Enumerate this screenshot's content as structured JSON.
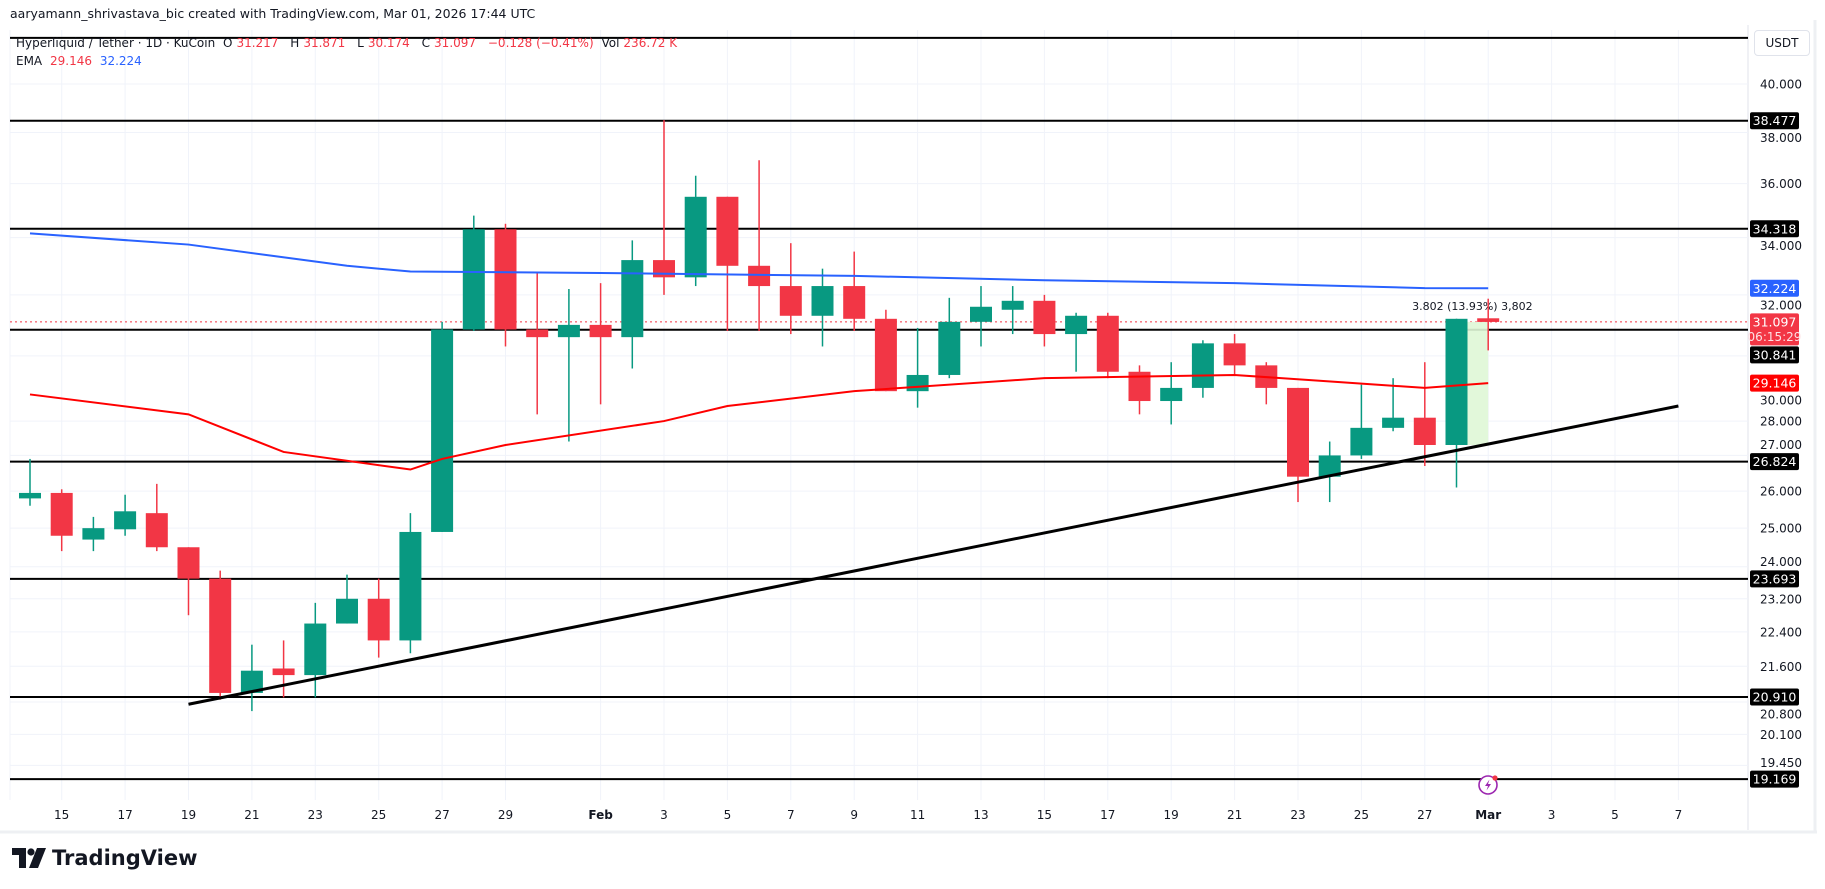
{
  "credit": "aaryamann_shrivastava_bic created with TradingView.com, Mar 01, 2026 17:44 UTC",
  "legend": {
    "symbol": "Hyperliquid / Tether · 1D · KuCoin",
    "o_label": "O",
    "o": "31.217",
    "h_label": "H",
    "h": "31.871",
    "l_label": "L",
    "l": "30.174",
    "c_label": "C",
    "c": "31.097",
    "change": "−0.128 (−0.41%)",
    "vol_label": "Vol",
    "vol": "236.72 K",
    "ema_label": "EMA",
    "ema_fast": "29.146",
    "ema_slow": "32.224"
  },
  "currency_button": "USDT",
  "brand": "TradingView",
  "colors": {
    "up": "#089981",
    "down": "#f23645",
    "ema_fast": "#ff0000",
    "ema_slow": "#2962ff",
    "levels": "#000000",
    "measure_fill": "#dff7d6",
    "alert_icon": "#9c27b0"
  },
  "chart_data": {
    "type": "candlestick",
    "y_scale": "log",
    "ylim": [
      19.0,
      42.5
    ],
    "grid": true,
    "candles": [
      {
        "date": "2026-01-14",
        "o": 25.8,
        "h": 26.9,
        "l": 25.6,
        "c": 25.95
      },
      {
        "date": "2026-01-15",
        "o": 25.95,
        "h": 26.05,
        "l": 24.4,
        "c": 24.8
      },
      {
        "date": "2026-01-16",
        "o": 24.7,
        "h": 25.3,
        "l": 24.4,
        "c": 25.0
      },
      {
        "date": "2026-01-17",
        "o": 24.97,
        "h": 25.9,
        "l": 24.8,
        "c": 25.45
      },
      {
        "date": "2026-01-18",
        "o": 25.4,
        "h": 26.2,
        "l": 24.4,
        "c": 24.5
      },
      {
        "date": "2026-01-19",
        "o": 24.5,
        "h": 24.5,
        "l": 22.8,
        "c": 23.7
      },
      {
        "date": "2026-01-20",
        "o": 23.7,
        "h": 23.9,
        "l": 20.85,
        "c": 21.0
      },
      {
        "date": "2026-01-21",
        "o": 21.0,
        "h": 22.1,
        "l": 20.6,
        "c": 21.5
      },
      {
        "date": "2026-01-22",
        "o": 21.55,
        "h": 22.2,
        "l": 20.9,
        "c": 21.4
      },
      {
        "date": "2026-01-23",
        "o": 21.4,
        "h": 23.1,
        "l": 20.9,
        "c": 22.6
      },
      {
        "date": "2026-01-24",
        "o": 22.6,
        "h": 23.8,
        "l": 22.6,
        "c": 23.2
      },
      {
        "date": "2026-01-25",
        "o": 23.2,
        "h": 23.7,
        "l": 21.8,
        "c": 22.2
      },
      {
        "date": "2026-01-26",
        "o": 22.2,
        "h": 25.4,
        "l": 21.9,
        "c": 24.9
      },
      {
        "date": "2026-01-27",
        "o": 24.9,
        "h": 31.1,
        "l": 24.9,
        "c": 30.85
      },
      {
        "date": "2026-01-28",
        "o": 30.85,
        "h": 34.8,
        "l": 30.8,
        "c": 34.3
      },
      {
        "date": "2026-01-29",
        "o": 34.3,
        "h": 34.5,
        "l": 30.3,
        "c": 30.85
      },
      {
        "date": "2026-01-30",
        "o": 30.85,
        "h": 32.8,
        "l": 28.2,
        "c": 30.6
      },
      {
        "date": "2026-01-31",
        "o": 30.6,
        "h": 32.2,
        "l": 27.4,
        "c": 31.0
      },
      {
        "date": "2026-02-01",
        "o": 31.0,
        "h": 32.4,
        "l": 28.5,
        "c": 30.6
      },
      {
        "date": "2026-02-02",
        "o": 30.6,
        "h": 33.9,
        "l": 29.6,
        "c": 33.2
      },
      {
        "date": "2026-02-03",
        "o": 33.2,
        "h": 38.5,
        "l": 32.0,
        "c": 32.6
      },
      {
        "date": "2026-02-04",
        "o": 32.6,
        "h": 36.3,
        "l": 32.3,
        "c": 35.5
      },
      {
        "date": "2026-02-05",
        "o": 35.5,
        "h": 35.5,
        "l": 30.8,
        "c": 33.0
      },
      {
        "date": "2026-02-06",
        "o": 33.0,
        "h": 36.9,
        "l": 30.8,
        "c": 32.3
      },
      {
        "date": "2026-02-07",
        "o": 32.3,
        "h": 33.8,
        "l": 30.7,
        "c": 31.3
      },
      {
        "date": "2026-02-08",
        "o": 31.3,
        "h": 32.9,
        "l": 30.3,
        "c": 32.3
      },
      {
        "date": "2026-02-09",
        "o": 32.3,
        "h": 33.5,
        "l": 30.8,
        "c": 31.2
      },
      {
        "date": "2026-02-10",
        "o": 31.2,
        "h": 31.5,
        "l": 28.9,
        "c": 28.9
      },
      {
        "date": "2026-02-11",
        "o": 28.9,
        "h": 30.9,
        "l": 28.4,
        "c": 29.4
      },
      {
        "date": "2026-02-12",
        "o": 29.4,
        "h": 31.9,
        "l": 29.3,
        "c": 31.1
      },
      {
        "date": "2026-02-13",
        "o": 31.1,
        "h": 32.3,
        "l": 30.3,
        "c": 31.6
      },
      {
        "date": "2026-02-14",
        "o": 31.5,
        "h": 32.3,
        "l": 30.7,
        "c": 31.8
      },
      {
        "date": "2026-02-15",
        "o": 31.8,
        "h": 32.0,
        "l": 30.3,
        "c": 30.7
      },
      {
        "date": "2026-02-16",
        "o": 30.7,
        "h": 31.4,
        "l": 29.5,
        "c": 31.3
      },
      {
        "date": "2026-02-17",
        "o": 31.3,
        "h": 31.4,
        "l": 29.3,
        "c": 29.5
      },
      {
        "date": "2026-02-18",
        "o": 29.5,
        "h": 29.7,
        "l": 28.2,
        "c": 28.6
      },
      {
        "date": "2026-02-19",
        "o": 28.6,
        "h": 29.8,
        "l": 27.9,
        "c": 29.0
      },
      {
        "date": "2026-02-20",
        "o": 29.0,
        "h": 30.5,
        "l": 28.7,
        "c": 30.4
      },
      {
        "date": "2026-02-21",
        "o": 30.4,
        "h": 30.7,
        "l": 29.4,
        "c": 29.7
      },
      {
        "date": "2026-02-22",
        "o": 29.7,
        "h": 29.8,
        "l": 28.5,
        "c": 29.0
      },
      {
        "date": "2026-02-23",
        "o": 29.0,
        "h": 29.0,
        "l": 25.7,
        "c": 26.4
      },
      {
        "date": "2026-02-24",
        "o": 26.4,
        "h": 27.4,
        "l": 25.7,
        "c": 27.0
      },
      {
        "date": "2026-02-25",
        "o": 27.0,
        "h": 29.1,
        "l": 26.9,
        "c": 27.8
      },
      {
        "date": "2026-02-26",
        "o": 27.8,
        "h": 29.3,
        "l": 27.7,
        "c": 28.1
      },
      {
        "date": "2026-02-27",
        "o": 28.1,
        "h": 29.8,
        "l": 26.7,
        "c": 27.3
      },
      {
        "date": "2026-02-28",
        "o": 27.3,
        "h": 31.2,
        "l": 26.1,
        "c": 31.2
      },
      {
        "date": "2026-03-01",
        "o": 31.217,
        "h": 31.871,
        "l": 30.174,
        "c": 31.097
      }
    ],
    "ema_fast": [
      {
        "date": "2026-01-14",
        "v": 28.8
      },
      {
        "date": "2026-01-19",
        "v": 28.2
      },
      {
        "date": "2026-01-22",
        "v": 27.1
      },
      {
        "date": "2026-01-26",
        "v": 26.6
      },
      {
        "date": "2026-01-27",
        "v": 26.9
      },
      {
        "date": "2026-01-29",
        "v": 27.3
      },
      {
        "date": "2026-02-03",
        "v": 28.0
      },
      {
        "date": "2026-02-05",
        "v": 28.45
      },
      {
        "date": "2026-02-09",
        "v": 28.9
      },
      {
        "date": "2026-02-15",
        "v": 29.3
      },
      {
        "date": "2026-02-21",
        "v": 29.4
      },
      {
        "date": "2026-02-27",
        "v": 29.0
      },
      {
        "date": "2026-03-01",
        "v": 29.146
      }
    ],
    "ema_slow": [
      {
        "date": "2026-01-14",
        "v": 34.15
      },
      {
        "date": "2026-01-19",
        "v": 33.75
      },
      {
        "date": "2026-01-24",
        "v": 33.0
      },
      {
        "date": "2026-01-26",
        "v": 32.8
      },
      {
        "date": "2026-02-01",
        "v": 32.75
      },
      {
        "date": "2026-02-09",
        "v": 32.65
      },
      {
        "date": "2026-02-15",
        "v": 32.5
      },
      {
        "date": "2026-02-21",
        "v": 32.4
      },
      {
        "date": "2026-02-27",
        "v": 32.23
      },
      {
        "date": "2026-03-01",
        "v": 32.224
      }
    ],
    "levels": [
      "38.477",
      "34.318",
      "30.841",
      "26.824",
      "23.693",
      "20.910",
      "19.169"
    ],
    "unlabeled_levels": [
      42.0
    ],
    "trendline": {
      "start": {
        "date": "2026-01-19",
        "v": 20.75
      },
      "end": {
        "date": "2026-03-07",
        "v": 28.45
      }
    },
    "measure": {
      "from": "2026-02-28",
      "to": "2026-03-01",
      "low": 27.3,
      "high": 31.1,
      "label": "3.802 (13.93%) 3,802"
    },
    "last_price": {
      "value": "31.097",
      "countdown": "06:15:29"
    },
    "ema_fast_label": "29.146",
    "ema_slow_label": "32.224",
    "y_ticks": [
      "40.000",
      "38.000",
      "36.000",
      "34.000",
      "32.000",
      "30.000",
      "28.000",
      "27.000",
      "26.000",
      "25.000",
      "24.000",
      "23.200",
      "22.400",
      "21.600",
      "20.800",
      "20.100",
      "19.450"
    ],
    "x_ticks": [
      {
        "label": "15",
        "date": "2026-01-15"
      },
      {
        "label": "17",
        "date": "2026-01-17"
      },
      {
        "label": "19",
        "date": "2026-01-19"
      },
      {
        "label": "21",
        "date": "2026-01-21"
      },
      {
        "label": "23",
        "date": "2026-01-23"
      },
      {
        "label": "25",
        "date": "2026-01-25"
      },
      {
        "label": "27",
        "date": "2026-01-27"
      },
      {
        "label": "29",
        "date": "2026-01-29"
      },
      {
        "label": "Feb",
        "date": "2026-02-01"
      },
      {
        "label": "3",
        "date": "2026-02-03"
      },
      {
        "label": "5",
        "date": "2026-02-05"
      },
      {
        "label": "7",
        "date": "2026-02-07"
      },
      {
        "label": "9",
        "date": "2026-02-09"
      },
      {
        "label": "11",
        "date": "2026-02-11"
      },
      {
        "label": "13",
        "date": "2026-02-13"
      },
      {
        "label": "15",
        "date": "2026-02-15"
      },
      {
        "label": "17",
        "date": "2026-02-17"
      },
      {
        "label": "19",
        "date": "2026-02-19"
      },
      {
        "label": "21",
        "date": "2026-02-21"
      },
      {
        "label": "23",
        "date": "2026-02-23"
      },
      {
        "label": "25",
        "date": "2026-02-25"
      },
      {
        "label": "27",
        "date": "2026-02-27"
      },
      {
        "label": "Mar",
        "date": "2026-03-01"
      },
      {
        "label": "3",
        "date": "2026-03-03"
      },
      {
        "label": "5",
        "date": "2026-03-05"
      },
      {
        "label": "7",
        "date": "2026-03-07"
      }
    ]
  }
}
